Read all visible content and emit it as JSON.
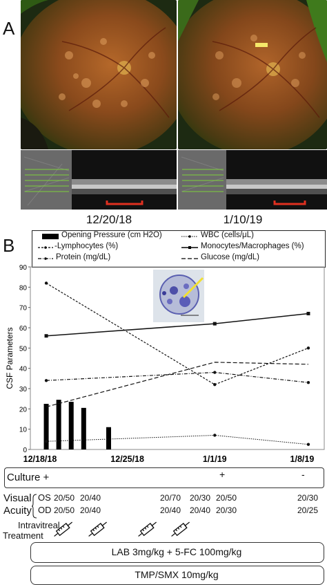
{
  "panel_a": {
    "letter": "A",
    "images": [
      {
        "date": "12/20/18"
      },
      {
        "date": "1/10/19"
      }
    ]
  },
  "panel_b": {
    "letter": "B",
    "legend": [
      {
        "key": "opening",
        "label": "Opening Pressure (cm H2O)"
      },
      {
        "key": "wbc",
        "label": "WBC (cells/μL)"
      },
      {
        "key": "lymph",
        "label": "-Lymphocytes (%)"
      },
      {
        "key": "mono",
        "label": "Monocytes/Macrophages (%)"
      },
      {
        "key": "protein",
        "label": "Protein (mg/dL)"
      },
      {
        "key": "glucose",
        "label": "Glucose (mg/dL)"
      }
    ],
    "culture": {
      "label": "Culture +",
      "marks": [
        "+",
        "-"
      ]
    },
    "visual": {
      "label1": "Visual",
      "label2": "Acuity",
      "os_label": "OS",
      "od_label": "OD",
      "os_values": [
        "20/50",
        "20/40",
        "20/70",
        "20/30",
        "20/50",
        "20/30"
      ],
      "od_values": [
        "20/50",
        "20/40",
        "20/40",
        "20/40",
        "20/30",
        "20/25"
      ]
    },
    "treatment": {
      "label1": "Intravitreal",
      "label2": "Treatment",
      "bar1": "LAB 3mg/kg + 5-FC 100mg/kg",
      "bar2": "TMP/SMX 10mg/kg"
    }
  },
  "chart_data": {
    "type": "bar+line",
    "ylabel": "CSF Parameters",
    "ylim": [
      0,
      90
    ],
    "yticks": [
      0,
      10,
      20,
      30,
      40,
      50,
      60,
      70,
      80,
      90
    ],
    "xlim": [
      0,
      22
    ],
    "xticks": [
      {
        "day": 0,
        "label": "12/18/18"
      },
      {
        "day": 7,
        "label": "12/25/18"
      },
      {
        "day": 14,
        "label": "1/1/19"
      },
      {
        "day": 21,
        "label": "1/8/19"
      }
    ],
    "bars": {
      "name": "Opening Pressure (cm H2O)",
      "x": [
        0.5,
        1.5,
        2.5,
        3.5,
        5.5
      ],
      "values": [
        22.5,
        24.5,
        23.5,
        20.5,
        11
      ]
    },
    "series": [
      {
        "key": "wbc",
        "name": "WBC (cells/μL)",
        "x": [
          0.5,
          14,
          21.5
        ],
        "values": [
          4,
          7,
          2.5
        ]
      },
      {
        "key": "lymph",
        "name": "-Lymphocytes (%)",
        "x": [
          0.5,
          14,
          21.5
        ],
        "values": [
          82,
          32,
          50
        ]
      },
      {
        "key": "mono",
        "name": "Monocytes/Macrophages (%)",
        "x": [
          0.5,
          14,
          21.5
        ],
        "values": [
          56,
          62,
          67
        ]
      },
      {
        "key": "protein",
        "name": "Protein (mg/dL)",
        "x": [
          0.5,
          14,
          21.5
        ],
        "values": [
          34,
          38,
          33
        ]
      },
      {
        "key": "glucose",
        "name": "Glucose (mg/dL)",
        "x": [
          0.5,
          14,
          21.5
        ],
        "values": [
          21,
          43,
          42
        ]
      }
    ]
  }
}
